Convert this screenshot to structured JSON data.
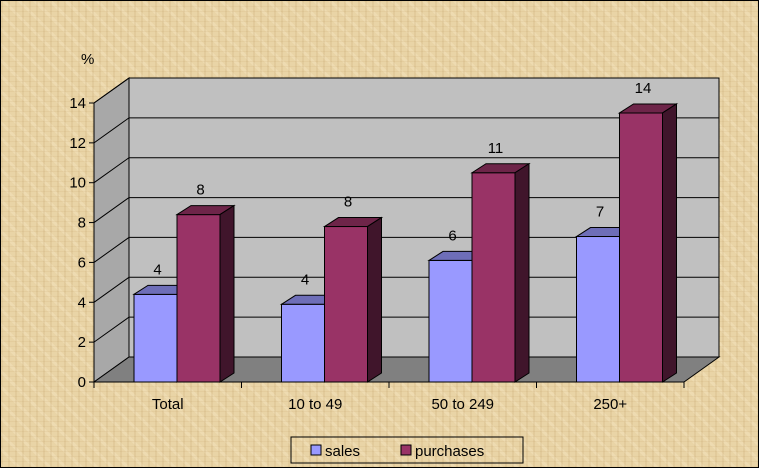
{
  "chart_data": {
    "type": "bar",
    "ylabel": "%",
    "ylim": [
      0,
      14
    ],
    "yticks": [
      "0",
      "2",
      "4",
      "6",
      "8",
      "10",
      "12",
      "14"
    ],
    "categories": [
      "Total",
      "10 to 49",
      "50 to 249",
      "250+"
    ],
    "series": [
      {
        "name": "sales",
        "values": [
          4.4,
          3.9,
          6.1,
          7.3
        ],
        "labels": [
          "4",
          "4",
          "6",
          "7"
        ],
        "color": "#9999ff"
      },
      {
        "name": "purchases",
        "values": [
          8.4,
          7.8,
          10.5,
          13.5
        ],
        "labels": [
          "8",
          "8",
          "11",
          "14"
        ],
        "color": "#993366"
      }
    ],
    "grid": true,
    "legend": "bottom",
    "style": "3d-clustered-column"
  }
}
